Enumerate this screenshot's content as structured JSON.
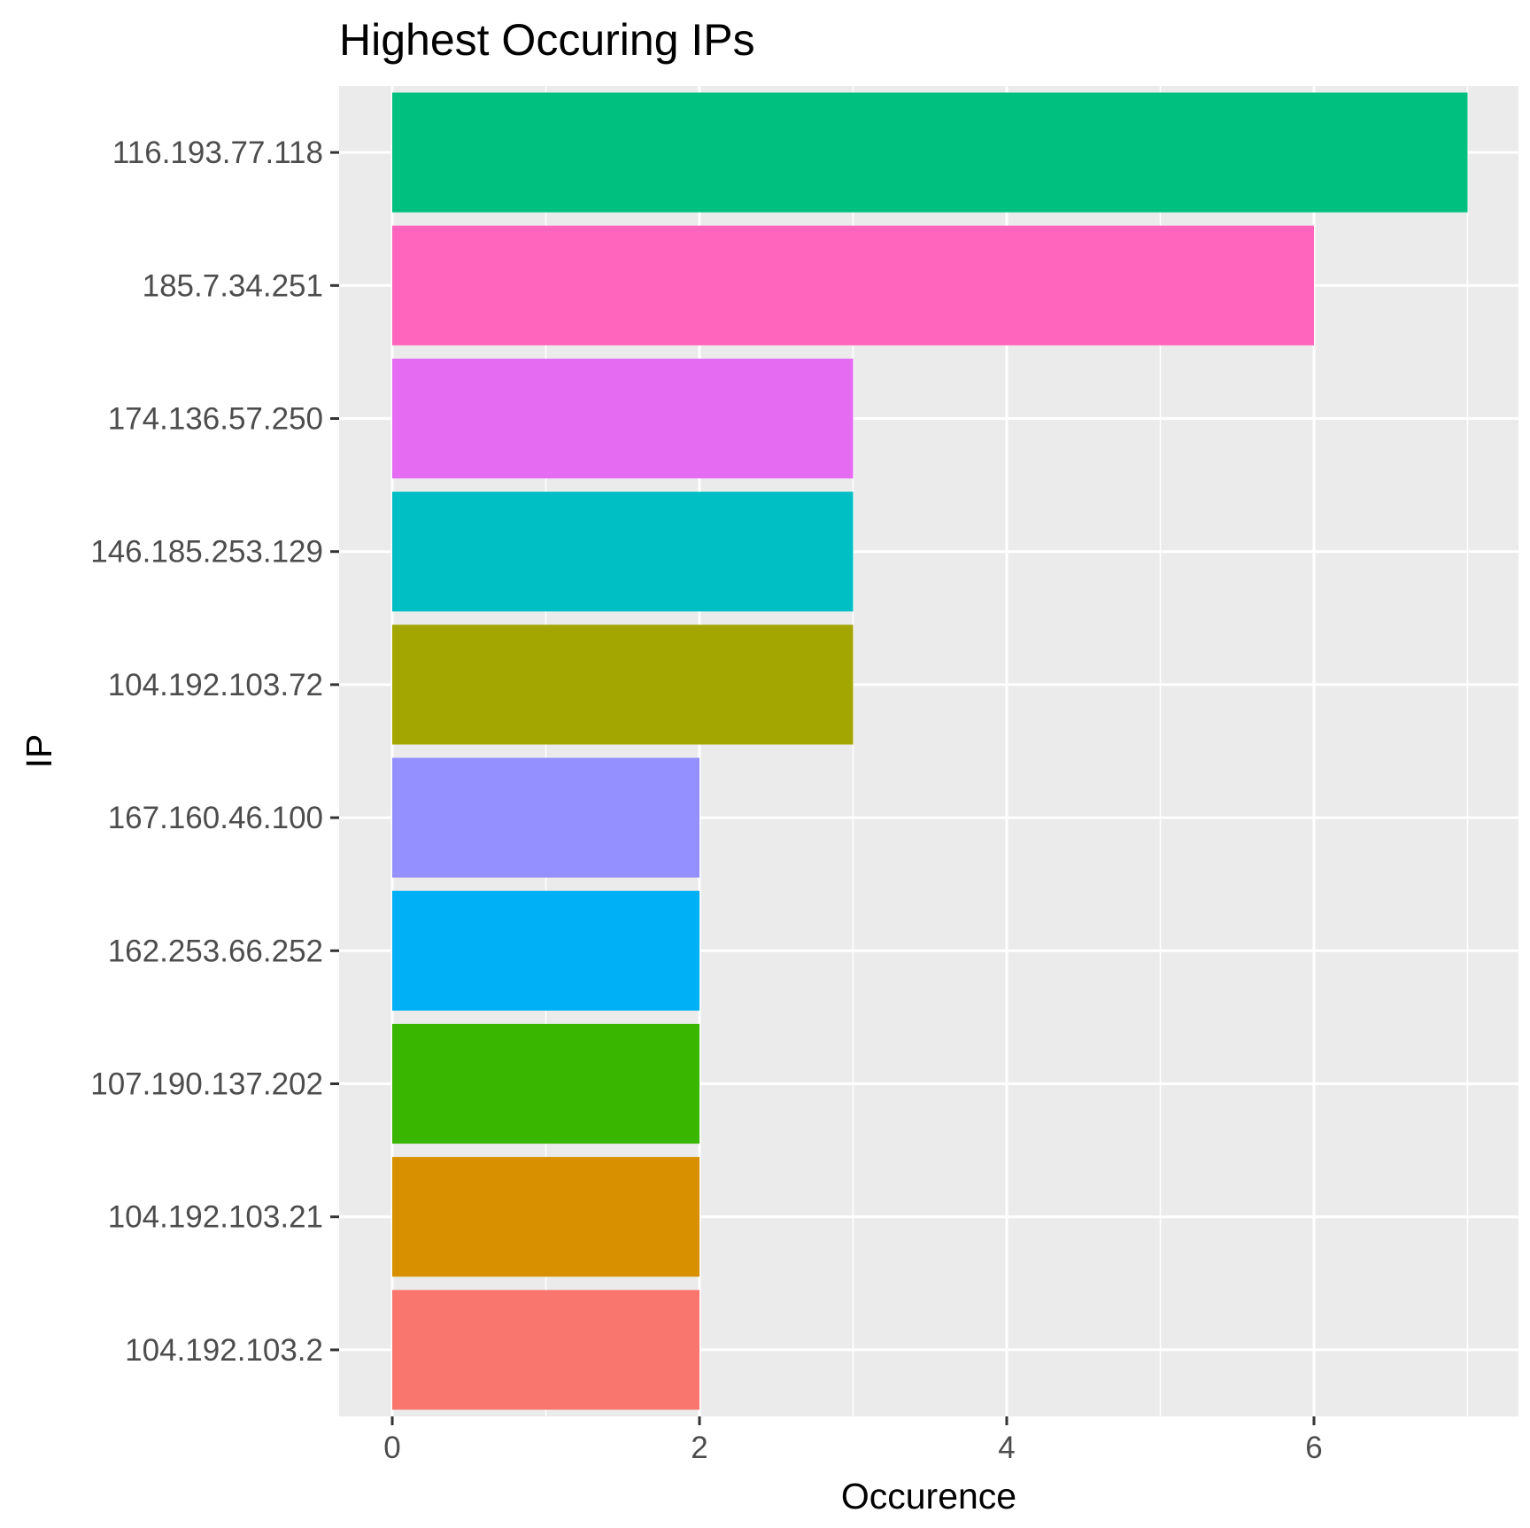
{
  "chart_data": {
    "type": "bar",
    "orientation": "horizontal",
    "title": "Highest Occuring IPs",
    "xlabel": "Occurence",
    "ylabel": "IP",
    "xlim": [
      0,
      7
    ],
    "x_ticks": [
      0,
      2,
      4,
      6
    ],
    "grid": true,
    "legend": "none",
    "panel_background": "#ebebeb",
    "grid_color": "#ffffff",
    "bars": [
      {
        "category": "116.193.77.118",
        "value": 7,
        "color": "#00c07f"
      },
      {
        "category": "185.7.34.251",
        "value": 6,
        "color": "#ff65bc"
      },
      {
        "category": "174.136.57.250",
        "value": 3,
        "color": "#e56bf3"
      },
      {
        "category": "146.185.253.129",
        "value": 3,
        "color": "#00bfc4"
      },
      {
        "category": "104.192.103.72",
        "value": 3,
        "color": "#a3a500"
      },
      {
        "category": "167.160.46.100",
        "value": 2,
        "color": "#9590ff"
      },
      {
        "category": "162.253.66.252",
        "value": 2,
        "color": "#00b0f6"
      },
      {
        "category": "107.190.137.202",
        "value": 2,
        "color": "#39b600"
      },
      {
        "category": "104.192.103.21",
        "value": 2,
        "color": "#d89000"
      },
      {
        "category": "104.192.103.2",
        "value": 2,
        "color": "#f8766d"
      }
    ]
  }
}
